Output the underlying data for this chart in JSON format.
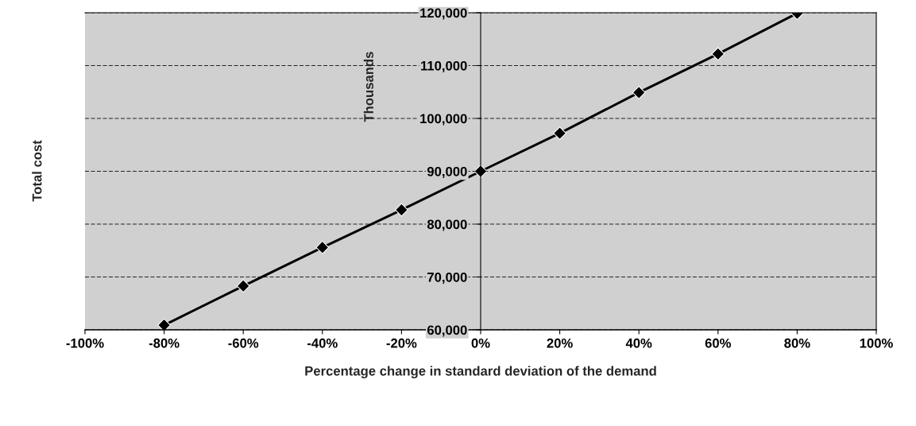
{
  "chart_data": {
    "type": "line",
    "xlabel": "Percentage change in standard deviation of the demand",
    "ylabel": "Total cost",
    "annotations": [
      "Thousands"
    ],
    "x": [
      -80,
      -60,
      -40,
      -20,
      0,
      20,
      40,
      60,
      80
    ],
    "series": [
      {
        "color": "#000000",
        "values": [
          60900,
          68300,
          75600,
          82700,
          90000,
          97200,
          104900,
          112200,
          119900
        ]
      }
    ],
    "marker": "diamond",
    "line_style": "solid",
    "grid": "y",
    "legend": false,
    "xlim": [
      -100,
      100
    ],
    "xticks": [
      {
        "value": -100,
        "label": "-100%"
      },
      {
        "value": -80,
        "label": "-80%"
      },
      {
        "value": -60,
        "label": "-60%"
      },
      {
        "value": -40,
        "label": "-40%"
      },
      {
        "value": -20,
        "label": "-20%"
      },
      {
        "value": 0,
        "label": "0%"
      },
      {
        "value": 20,
        "label": "20%"
      },
      {
        "value": 40,
        "label": "40%"
      },
      {
        "value": 60,
        "label": "60%"
      },
      {
        "value": 80,
        "label": "80%"
      },
      {
        "value": 100,
        "label": "100%"
      }
    ],
    "ylim": [
      60000,
      120000
    ],
    "yticks": [
      {
        "value": 60000,
        "label": "60,000"
      },
      {
        "value": 70000,
        "label": "70,000"
      },
      {
        "value": 80000,
        "label": "80,000"
      },
      {
        "value": 90000,
        "label": "90,000"
      },
      {
        "value": 100000,
        "label": "100,000"
      },
      {
        "value": 110000,
        "label": "110,000"
      },
      {
        "value": 120000,
        "label": "120,000"
      }
    ]
  }
}
